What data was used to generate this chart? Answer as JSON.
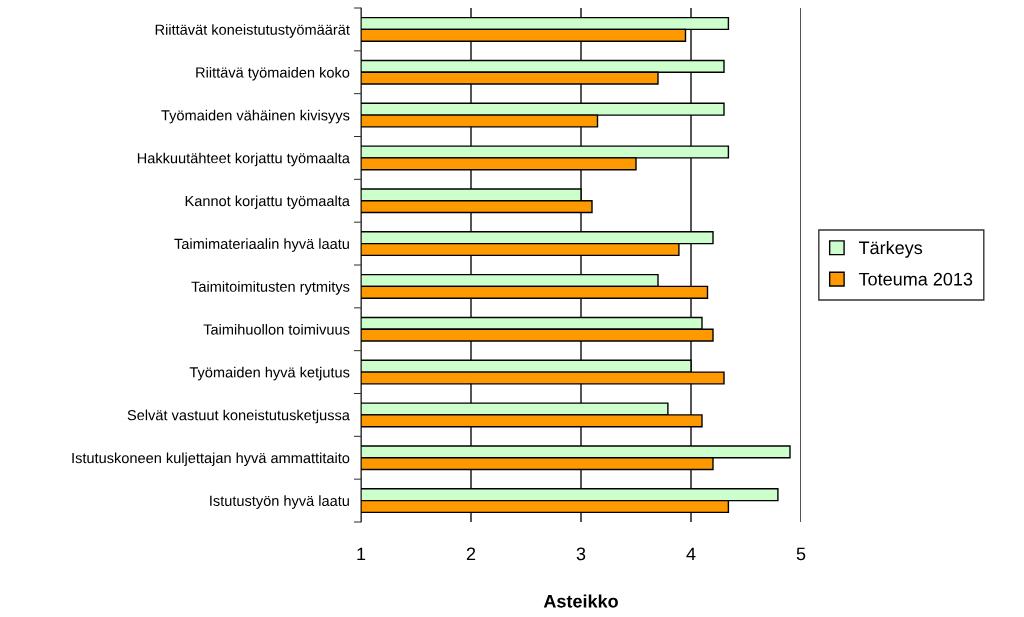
{
  "chart_data": {
    "type": "bar",
    "orientation": "horizontal",
    "xlabel": "Asteikko",
    "categories": [
      "Riittävät koneistutustyömäärät",
      "Riittävä työmaiden koko",
      "Työmaiden vähäinen kivisyys",
      "Hakkuutähteet korjattu työmaalta",
      "Kannot korjattu työmaalta",
      "Taimimateriaalin hyvä laatu",
      "Taimitoimitusten rytmitys",
      "Taimihuollon toimivuus",
      "Työmaiden hyvä ketjutus",
      "Selvät vastuut koneistutusketjussa",
      "Istutuskoneen kuljettajan hyvä ammattitaito",
      "Istutustyön hyvä laatu"
    ],
    "series": [
      {
        "name": "Tärkeys",
        "color": "#ccffcc",
        "values": [
          4.34,
          4.3,
          4.3,
          4.34,
          3.0,
          4.2,
          3.7,
          4.1,
          4.0,
          3.79,
          4.9,
          4.79
        ]
      },
      {
        "name": "Toteuma 2013",
        "color": "#ff9900",
        "values": [
          3.95,
          3.7,
          3.15,
          3.5,
          3.1,
          3.89,
          4.15,
          4.2,
          4.3,
          4.1,
          4.2,
          4.34
        ]
      }
    ],
    "xlim": [
      1,
      5
    ],
    "xticks": [
      1,
      2,
      3,
      4,
      5
    ],
    "grid": "x",
    "legend": "right"
  }
}
